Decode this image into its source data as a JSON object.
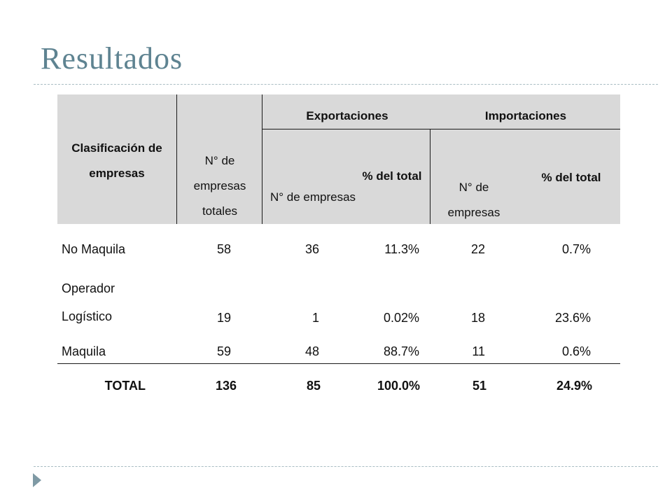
{
  "slide": {
    "title": "Resultados"
  },
  "table": {
    "headers": {
      "clasificacion": "Clasificación de empresas",
      "empresas_totales": "N° de empresas totales",
      "exportaciones": "Exportaciones",
      "importaciones": "Importaciones",
      "exp_empresas": "N° de empresas",
      "exp_pct": "% del total",
      "imp_empresas": "N° de empresas",
      "imp_pct": "% del total"
    },
    "rows": [
      {
        "clasificacion": "No Maquila",
        "totales": "58",
        "exp_n": "36",
        "exp_pct": "11.3%",
        "imp_n": "22",
        "imp_pct": "0.7%"
      },
      {
        "clasificacion": "Operador Logístico",
        "totales": "19",
        "exp_n": "1",
        "exp_pct": "0.02%",
        "imp_n": "18",
        "imp_pct": "23.6%"
      },
      {
        "clasificacion": "Maquila",
        "totales": "59",
        "exp_n": "48",
        "exp_pct": "88.7%",
        "imp_n": "11",
        "imp_pct": "0.6%"
      }
    ],
    "total": {
      "label": "TOTAL",
      "totales": "136",
      "exp_n": "85",
      "exp_pct": "100.0%",
      "imp_n": "51",
      "imp_pct": "24.9%"
    }
  },
  "colors": {
    "title": "#5e8391",
    "header_fill": "#d9d9d9",
    "rule": "#a9bcc3"
  }
}
